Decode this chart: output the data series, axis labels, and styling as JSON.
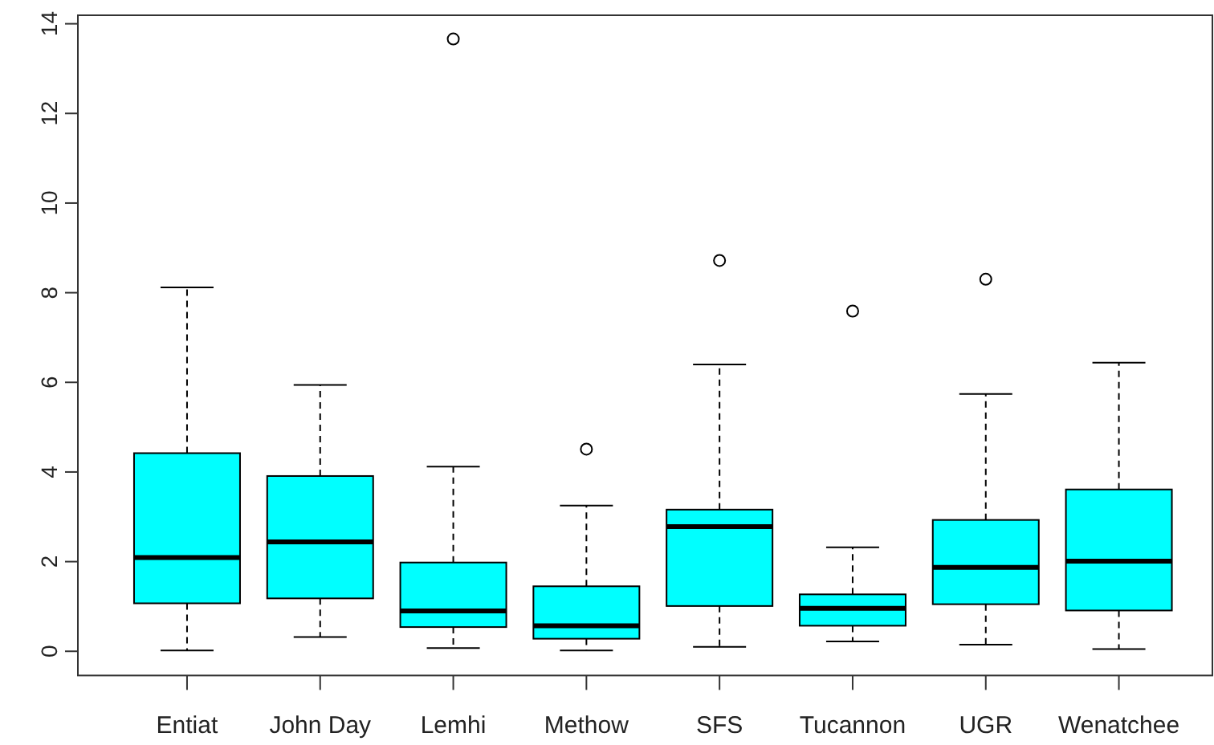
{
  "chart_data": {
    "type": "box",
    "categories": [
      "Entiat",
      "John Day",
      "Lemhi",
      "Methow",
      "SFS",
      "Tucannon",
      "UGR",
      "Wenatchee"
    ],
    "color": "#00ffff",
    "boxes": [
      {
        "low": 0.02,
        "q1": 1.07,
        "median": 2.09,
        "q3": 4.42,
        "high": 8.12
      },
      {
        "low": 0.32,
        "q1": 1.18,
        "median": 2.44,
        "q3": 3.91,
        "high": 5.94
      },
      {
        "low": 0.07,
        "q1": 0.54,
        "median": 0.9,
        "q3": 1.98,
        "high": 4.12,
        "outliers": [
          13.66
        ]
      },
      {
        "low": 0.02,
        "q1": 0.28,
        "median": 0.57,
        "q3": 1.45,
        "high": 3.25,
        "outliers": [
          4.51
        ]
      },
      {
        "low": 0.1,
        "q1": 1.01,
        "median": 2.78,
        "q3": 3.16,
        "high": 6.4,
        "outliers": [
          8.72
        ]
      },
      {
        "low": 0.22,
        "q1": 0.57,
        "median": 0.96,
        "q3": 1.27,
        "high": 2.32,
        "outliers": [
          7.59
        ]
      },
      {
        "low": 0.15,
        "q1": 1.05,
        "median": 1.87,
        "q3": 2.93,
        "high": 5.74,
        "outliers": [
          8.3
        ]
      },
      {
        "low": 0.05,
        "q1": 0.91,
        "median": 2.01,
        "q3": 3.61,
        "high": 6.44
      }
    ],
    "ylim": [
      -0.54,
      14.19
    ],
    "yticks": [
      0,
      2,
      4,
      6,
      8,
      10,
      12,
      14
    ],
    "grid": false
  }
}
